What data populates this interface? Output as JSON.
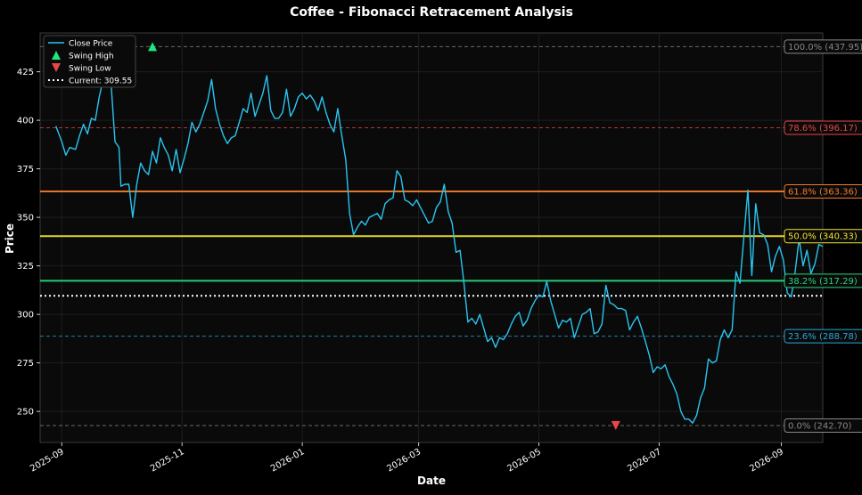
{
  "chart_data": {
    "type": "line",
    "title": "Coffee - Fibonacci Retracement Analysis",
    "xlabel": "Date",
    "ylabel": "Price",
    "xlim": [
      "2025-08-21",
      "2026-09-22"
    ],
    "ylim": [
      234,
      445
    ],
    "grid": true,
    "legend_position": "top-left",
    "x_ticks": [
      {
        "date": "2025-09-01",
        "label": "2025-09"
      },
      {
        "date": "2025-11-01",
        "label": "2025-11"
      },
      {
        "date": "2026-01-01",
        "label": "2026-01"
      },
      {
        "date": "2026-03-01",
        "label": "2026-03"
      },
      {
        "date": "2026-05-01",
        "label": "2026-05"
      },
      {
        "date": "2026-07-01",
        "label": "2026-07"
      },
      {
        "date": "2026-09-01",
        "label": "2026-09"
      }
    ],
    "y_ticks": [
      250,
      275,
      300,
      325,
      350,
      375,
      400,
      425
    ],
    "colors": {
      "background": "#0a0a0a",
      "line": "#29c5f0",
      "swing_high": "#1de87f",
      "swing_low": "#e84747",
      "current": "#ffffff"
    },
    "legend": [
      {
        "kind": "line",
        "label": "Close Price"
      },
      {
        "kind": "swing_high",
        "label": "Swing High"
      },
      {
        "kind": "swing_low",
        "label": "Swing Low"
      },
      {
        "kind": "current",
        "label": "Current: 309.55"
      }
    ],
    "series": [
      {
        "name": "Close Price",
        "points": [
          [
            "2025-08-29",
            397
          ],
          [
            "2025-09-01",
            389
          ],
          [
            "2025-09-03",
            382
          ],
          [
            "2025-09-05",
            386
          ],
          [
            "2025-09-08",
            385
          ],
          [
            "2025-09-10",
            392
          ],
          [
            "2025-09-12",
            398
          ],
          [
            "2025-09-14",
            393
          ],
          [
            "2025-09-16",
            401
          ],
          [
            "2025-09-18",
            400
          ],
          [
            "2025-09-20",
            412
          ],
          [
            "2025-09-22",
            421
          ],
          [
            "2025-09-24",
            433
          ],
          [
            "2025-09-26",
            419
          ],
          [
            "2025-09-28",
            389
          ],
          [
            "2025-09-30",
            386
          ],
          [
            "2025-10-01",
            366
          ],
          [
            "2025-10-03",
            367
          ],
          [
            "2025-10-05",
            367
          ],
          [
            "2025-10-07",
            350
          ],
          [
            "2025-10-09",
            367
          ],
          [
            "2025-10-11",
            378
          ],
          [
            "2025-10-13",
            374
          ],
          [
            "2025-10-15",
            372
          ],
          [
            "2025-10-17",
            384
          ],
          [
            "2025-10-19",
            378
          ],
          [
            "2025-10-21",
            391
          ],
          [
            "2025-10-23",
            386
          ],
          [
            "2025-10-25",
            382
          ],
          [
            "2025-10-27",
            374
          ],
          [
            "2025-10-29",
            385
          ],
          [
            "2025-10-31",
            373
          ],
          [
            "2025-11-02",
            380
          ],
          [
            "2025-11-04",
            388
          ],
          [
            "2025-11-06",
            399
          ],
          [
            "2025-11-08",
            394
          ],
          [
            "2025-11-10",
            398
          ],
          [
            "2025-11-12",
            404
          ],
          [
            "2025-11-14",
            410
          ],
          [
            "2025-11-16",
            421
          ],
          [
            "2025-11-18",
            406
          ],
          [
            "2025-11-20",
            398
          ],
          [
            "2025-11-22",
            392
          ],
          [
            "2025-11-24",
            388
          ],
          [
            "2025-11-26",
            391
          ],
          [
            "2025-11-28",
            392
          ],
          [
            "2025-11-30",
            399
          ],
          [
            "2025-12-02",
            406
          ],
          [
            "2025-12-04",
            404
          ],
          [
            "2025-12-06",
            414
          ],
          [
            "2025-12-08",
            402
          ],
          [
            "2025-12-10",
            408
          ],
          [
            "2025-12-12",
            414
          ],
          [
            "2025-12-14",
            423
          ],
          [
            "2025-12-16",
            405
          ],
          [
            "2025-12-18",
            401
          ],
          [
            "2025-12-20",
            401
          ],
          [
            "2025-12-22",
            404
          ],
          [
            "2025-12-24",
            416
          ],
          [
            "2025-12-26",
            402
          ],
          [
            "2025-12-28",
            406
          ],
          [
            "2025-12-30",
            412
          ],
          [
            "2026-01-01",
            414
          ],
          [
            "2026-01-03",
            411
          ],
          [
            "2026-01-05",
            413
          ],
          [
            "2026-01-07",
            410
          ],
          [
            "2026-01-09",
            405
          ],
          [
            "2026-01-11",
            412
          ],
          [
            "2026-01-13",
            404
          ],
          [
            "2026-01-15",
            398
          ],
          [
            "2026-01-17",
            394
          ],
          [
            "2026-01-19",
            406
          ],
          [
            "2026-01-21",
            392
          ],
          [
            "2026-01-23",
            380
          ],
          [
            "2026-01-25",
            352
          ],
          [
            "2026-01-27",
            341
          ],
          [
            "2026-01-29",
            345
          ],
          [
            "2026-01-31",
            348
          ],
          [
            "2026-02-02",
            346
          ],
          [
            "2026-02-04",
            350
          ],
          [
            "2026-02-06",
            351
          ],
          [
            "2026-02-08",
            352
          ],
          [
            "2026-02-10",
            349
          ],
          [
            "2026-02-12",
            357
          ],
          [
            "2026-02-14",
            359
          ],
          [
            "2026-02-16",
            360
          ],
          [
            "2026-02-18",
            374
          ],
          [
            "2026-02-20",
            371
          ],
          [
            "2026-02-22",
            359
          ],
          [
            "2026-02-24",
            358
          ],
          [
            "2026-02-26",
            356
          ],
          [
            "2026-02-28",
            359
          ],
          [
            "2026-03-02",
            355
          ],
          [
            "2026-03-04",
            351
          ],
          [
            "2026-03-06",
            347
          ],
          [
            "2026-03-08",
            348
          ],
          [
            "2026-03-10",
            355
          ],
          [
            "2026-03-12",
            358
          ],
          [
            "2026-03-14",
            367
          ],
          [
            "2026-03-16",
            353
          ],
          [
            "2026-03-18",
            347
          ],
          [
            "2026-03-20",
            332
          ],
          [
            "2026-03-22",
            333
          ],
          [
            "2026-03-24",
            316
          ],
          [
            "2026-03-26",
            296
          ],
          [
            "2026-03-28",
            298
          ],
          [
            "2026-03-30",
            295
          ],
          [
            "2026-04-01",
            300
          ],
          [
            "2026-04-03",
            293
          ],
          [
            "2026-04-05",
            286
          ],
          [
            "2026-04-07",
            288
          ],
          [
            "2026-04-09",
            283
          ],
          [
            "2026-04-11",
            288
          ],
          [
            "2026-04-13",
            287
          ],
          [
            "2026-04-15",
            290
          ],
          [
            "2026-04-17",
            295
          ],
          [
            "2026-04-19",
            299
          ],
          [
            "2026-04-21",
            301
          ],
          [
            "2026-04-23",
            294
          ],
          [
            "2026-04-25",
            297
          ],
          [
            "2026-04-27",
            303
          ],
          [
            "2026-04-29",
            307
          ],
          [
            "2026-05-01",
            310
          ],
          [
            "2026-05-03",
            309
          ],
          [
            "2026-05-05",
            317
          ],
          [
            "2026-05-07",
            307
          ],
          [
            "2026-05-09",
            300
          ],
          [
            "2026-05-11",
            293
          ],
          [
            "2026-05-13",
            297
          ],
          [
            "2026-05-15",
            296
          ],
          [
            "2026-05-17",
            298
          ],
          [
            "2026-05-19",
            288
          ],
          [
            "2026-05-21",
            294
          ],
          [
            "2026-05-23",
            300
          ],
          [
            "2026-05-25",
            301
          ],
          [
            "2026-05-27",
            303
          ],
          [
            "2026-05-29",
            290
          ],
          [
            "2026-05-31",
            291
          ],
          [
            "2026-06-02",
            295
          ],
          [
            "2026-06-04",
            315
          ],
          [
            "2026-06-06",
            306
          ],
          [
            "2026-06-08",
            305
          ],
          [
            "2026-06-10",
            303
          ],
          [
            "2026-06-12",
            303
          ],
          [
            "2026-06-14",
            302
          ],
          [
            "2026-06-16",
            292
          ],
          [
            "2026-06-18",
            296
          ],
          [
            "2026-06-20",
            299
          ],
          [
            "2026-06-22",
            293
          ],
          [
            "2026-06-24",
            286
          ],
          [
            "2026-06-26",
            279
          ],
          [
            "2026-06-28",
            270
          ],
          [
            "2026-06-30",
            273
          ],
          [
            "2026-07-02",
            272
          ],
          [
            "2026-07-04",
            274
          ],
          [
            "2026-07-06",
            268
          ],
          [
            "2026-07-08",
            264
          ],
          [
            "2026-07-10",
            259
          ],
          [
            "2026-07-12",
            250
          ],
          [
            "2026-07-14",
            246
          ],
          [
            "2026-07-16",
            246
          ],
          [
            "2026-07-18",
            244
          ],
          [
            "2026-07-20",
            248
          ],
          [
            "2026-07-22",
            257
          ],
          [
            "2026-07-24",
            262
          ],
          [
            "2026-07-26",
            277
          ],
          [
            "2026-07-28",
            275
          ],
          [
            "2026-07-30",
            276
          ],
          [
            "2026-08-01",
            287
          ],
          [
            "2026-08-03",
            292
          ],
          [
            "2026-08-05",
            288
          ],
          [
            "2026-08-07",
            292
          ],
          [
            "2026-08-09",
            322
          ],
          [
            "2026-08-11",
            316
          ],
          [
            "2026-08-13",
            340
          ],
          [
            "2026-08-15",
            364
          ],
          [
            "2026-08-17",
            320
          ],
          [
            "2026-08-19",
            357
          ],
          [
            "2026-08-21",
            342
          ],
          [
            "2026-08-23",
            341
          ],
          [
            "2026-08-25",
            336
          ],
          [
            "2026-08-27",
            322
          ],
          [
            "2026-08-29",
            330
          ],
          [
            "2026-08-31",
            335
          ],
          [
            "2026-09-02",
            328
          ],
          [
            "2026-09-04",
            311
          ],
          [
            "2026-09-06",
            309
          ],
          [
            "2026-09-08",
            322
          ],
          [
            "2026-09-10",
            339
          ],
          [
            "2026-09-12",
            325
          ],
          [
            "2026-09-14",
            333
          ],
          [
            "2026-09-16",
            321
          ],
          [
            "2026-09-18",
            326
          ],
          [
            "2026-09-20",
            336
          ],
          [
            "2026-09-22",
            335
          ]
        ]
      }
    ],
    "swing_high": {
      "date": "2025-10-17",
      "value": 437.95
    },
    "swing_low": {
      "date": "2026-06-09",
      "value": 242.7
    },
    "current": {
      "value": 309.55
    },
    "fib_levels": [
      {
        "label": "100.0% (437.95)",
        "value": 437.95,
        "color": "#888888",
        "style": "dashed",
        "width": 1
      },
      {
        "label": "78.6% (396.17)",
        "value": 396.17,
        "color": "#e84747",
        "style": "dashed",
        "width": 1
      },
      {
        "label": "61.8% (363.36)",
        "value": 363.36,
        "color": "#f07b2a",
        "style": "solid",
        "width": 2
      },
      {
        "label": "50.0% (340.33)",
        "value": 340.33,
        "color": "#f0e12a",
        "style": "solid",
        "width": 2
      },
      {
        "label": "38.2% (317.29)",
        "value": 317.29,
        "color": "#2ad47c",
        "style": "solid",
        "width": 2
      },
      {
        "label": "23.6% (288.78)",
        "value": 288.78,
        "color": "#29a9d8",
        "style": "dashed",
        "width": 1
      },
      {
        "label": "0.0% (242.70)",
        "value": 242.7,
        "color": "#888888",
        "style": "dashed",
        "width": 1
      }
    ]
  }
}
